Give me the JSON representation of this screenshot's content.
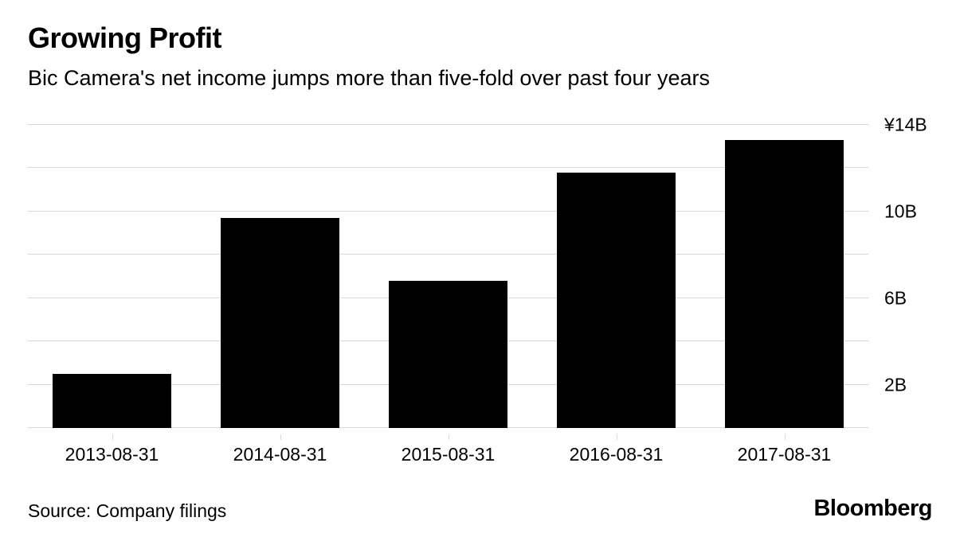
{
  "header": {
    "title": "Growing Profit",
    "subtitle": "Bic Camera's net income jumps more than five-fold over past four years"
  },
  "footer": {
    "source": "Source: Company filings",
    "brand": "Bloomberg"
  },
  "colors": {
    "bar": "#000000",
    "gridline": "#d9d9d9",
    "text": "#000000",
    "background": "#ffffff"
  },
  "chart_data": {
    "type": "bar",
    "title": "Growing Profit",
    "subtitle": "Bic Camera's net income jumps more than five-fold over past four years",
    "categories": [
      "2013-08-31",
      "2014-08-31",
      "2015-08-31",
      "2016-08-31",
      "2017-08-31"
    ],
    "values": [
      2.5,
      9.7,
      6.8,
      11.8,
      13.3
    ],
    "unit": "JPY billions",
    "xlabel": "",
    "ylabel": "",
    "ylim": [
      0,
      14
    ],
    "gridlines": [
      2,
      4,
      6,
      8,
      10,
      12,
      14
    ],
    "ytick_labels": [
      {
        "value": 14,
        "label": "¥14B"
      },
      {
        "value": 10,
        "label": "10B"
      },
      {
        "value": 6,
        "label": "6B"
      },
      {
        "value": 2,
        "label": "2B"
      }
    ],
    "grid": true,
    "legend_position": "none",
    "bar_color": "#000000"
  }
}
